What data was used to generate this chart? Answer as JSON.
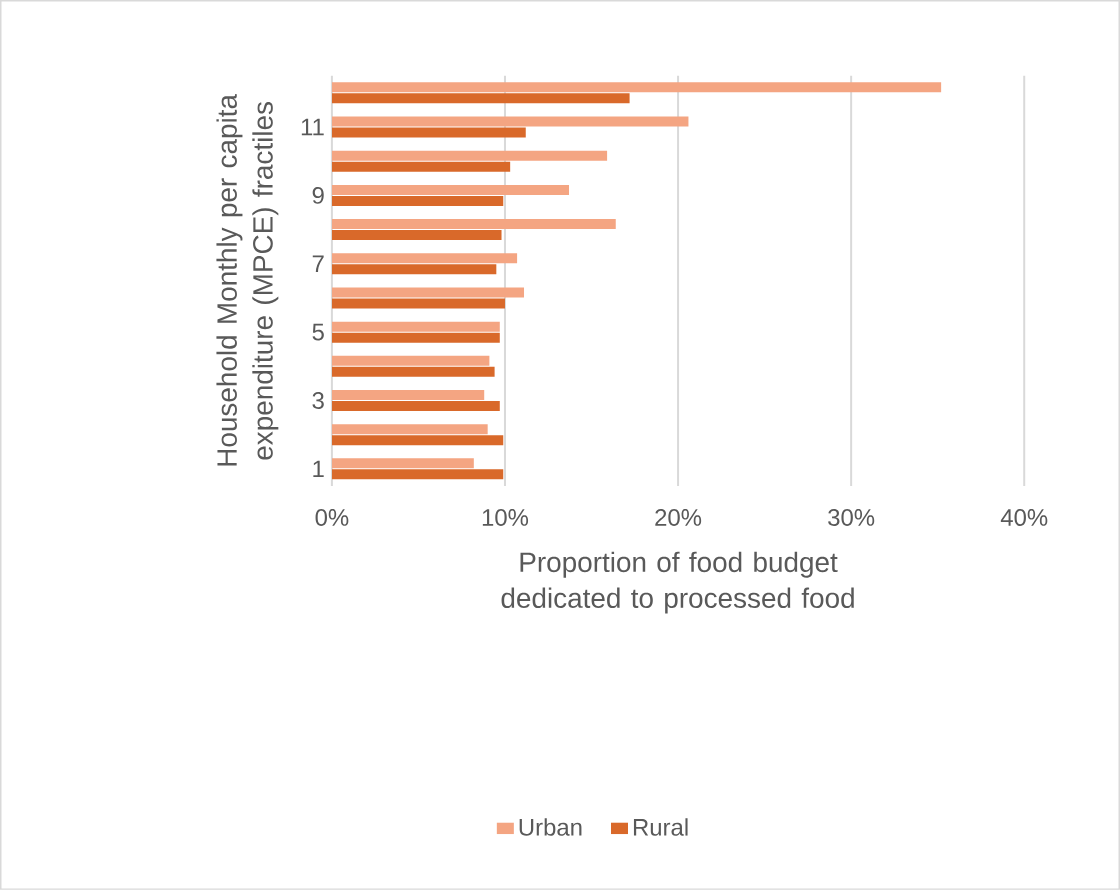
{
  "chart_data": {
    "type": "bar",
    "orientation": "horizontal",
    "xlabel": "Proportion of food budget dedicated to processed food",
    "ylabel": "Household Monthly per capita expenditure (MPCE) fractiles",
    "categories": [
      null,
      "11",
      null,
      "9",
      null,
      "7",
      null,
      "5",
      null,
      "3",
      null,
      "1"
    ],
    "series": [
      {
        "name": "Urban",
        "color": "#f4a582",
        "values": [
          35.2,
          20.6,
          15.9,
          13.7,
          16.4,
          10.7,
          11.1,
          9.7,
          9.1,
          8.8,
          9.0,
          8.2
        ]
      },
      {
        "name": "Rural",
        "color": "#d9692a",
        "values": [
          17.2,
          11.2,
          10.3,
          9.9,
          9.8,
          9.5,
          10.0,
          9.7,
          9.4,
          9.7,
          9.9,
          9.9
        ]
      }
    ],
    "xlim": [
      0,
      40
    ],
    "xticks": [
      {
        "value": 0,
        "label": "0%"
      },
      {
        "value": 10,
        "label": "10%"
      },
      {
        "value": 20,
        "label": "20%"
      },
      {
        "value": 30,
        "label": "30%"
      },
      {
        "value": 40,
        "label": "40%"
      }
    ],
    "grid": "x",
    "legend": "bottom"
  }
}
